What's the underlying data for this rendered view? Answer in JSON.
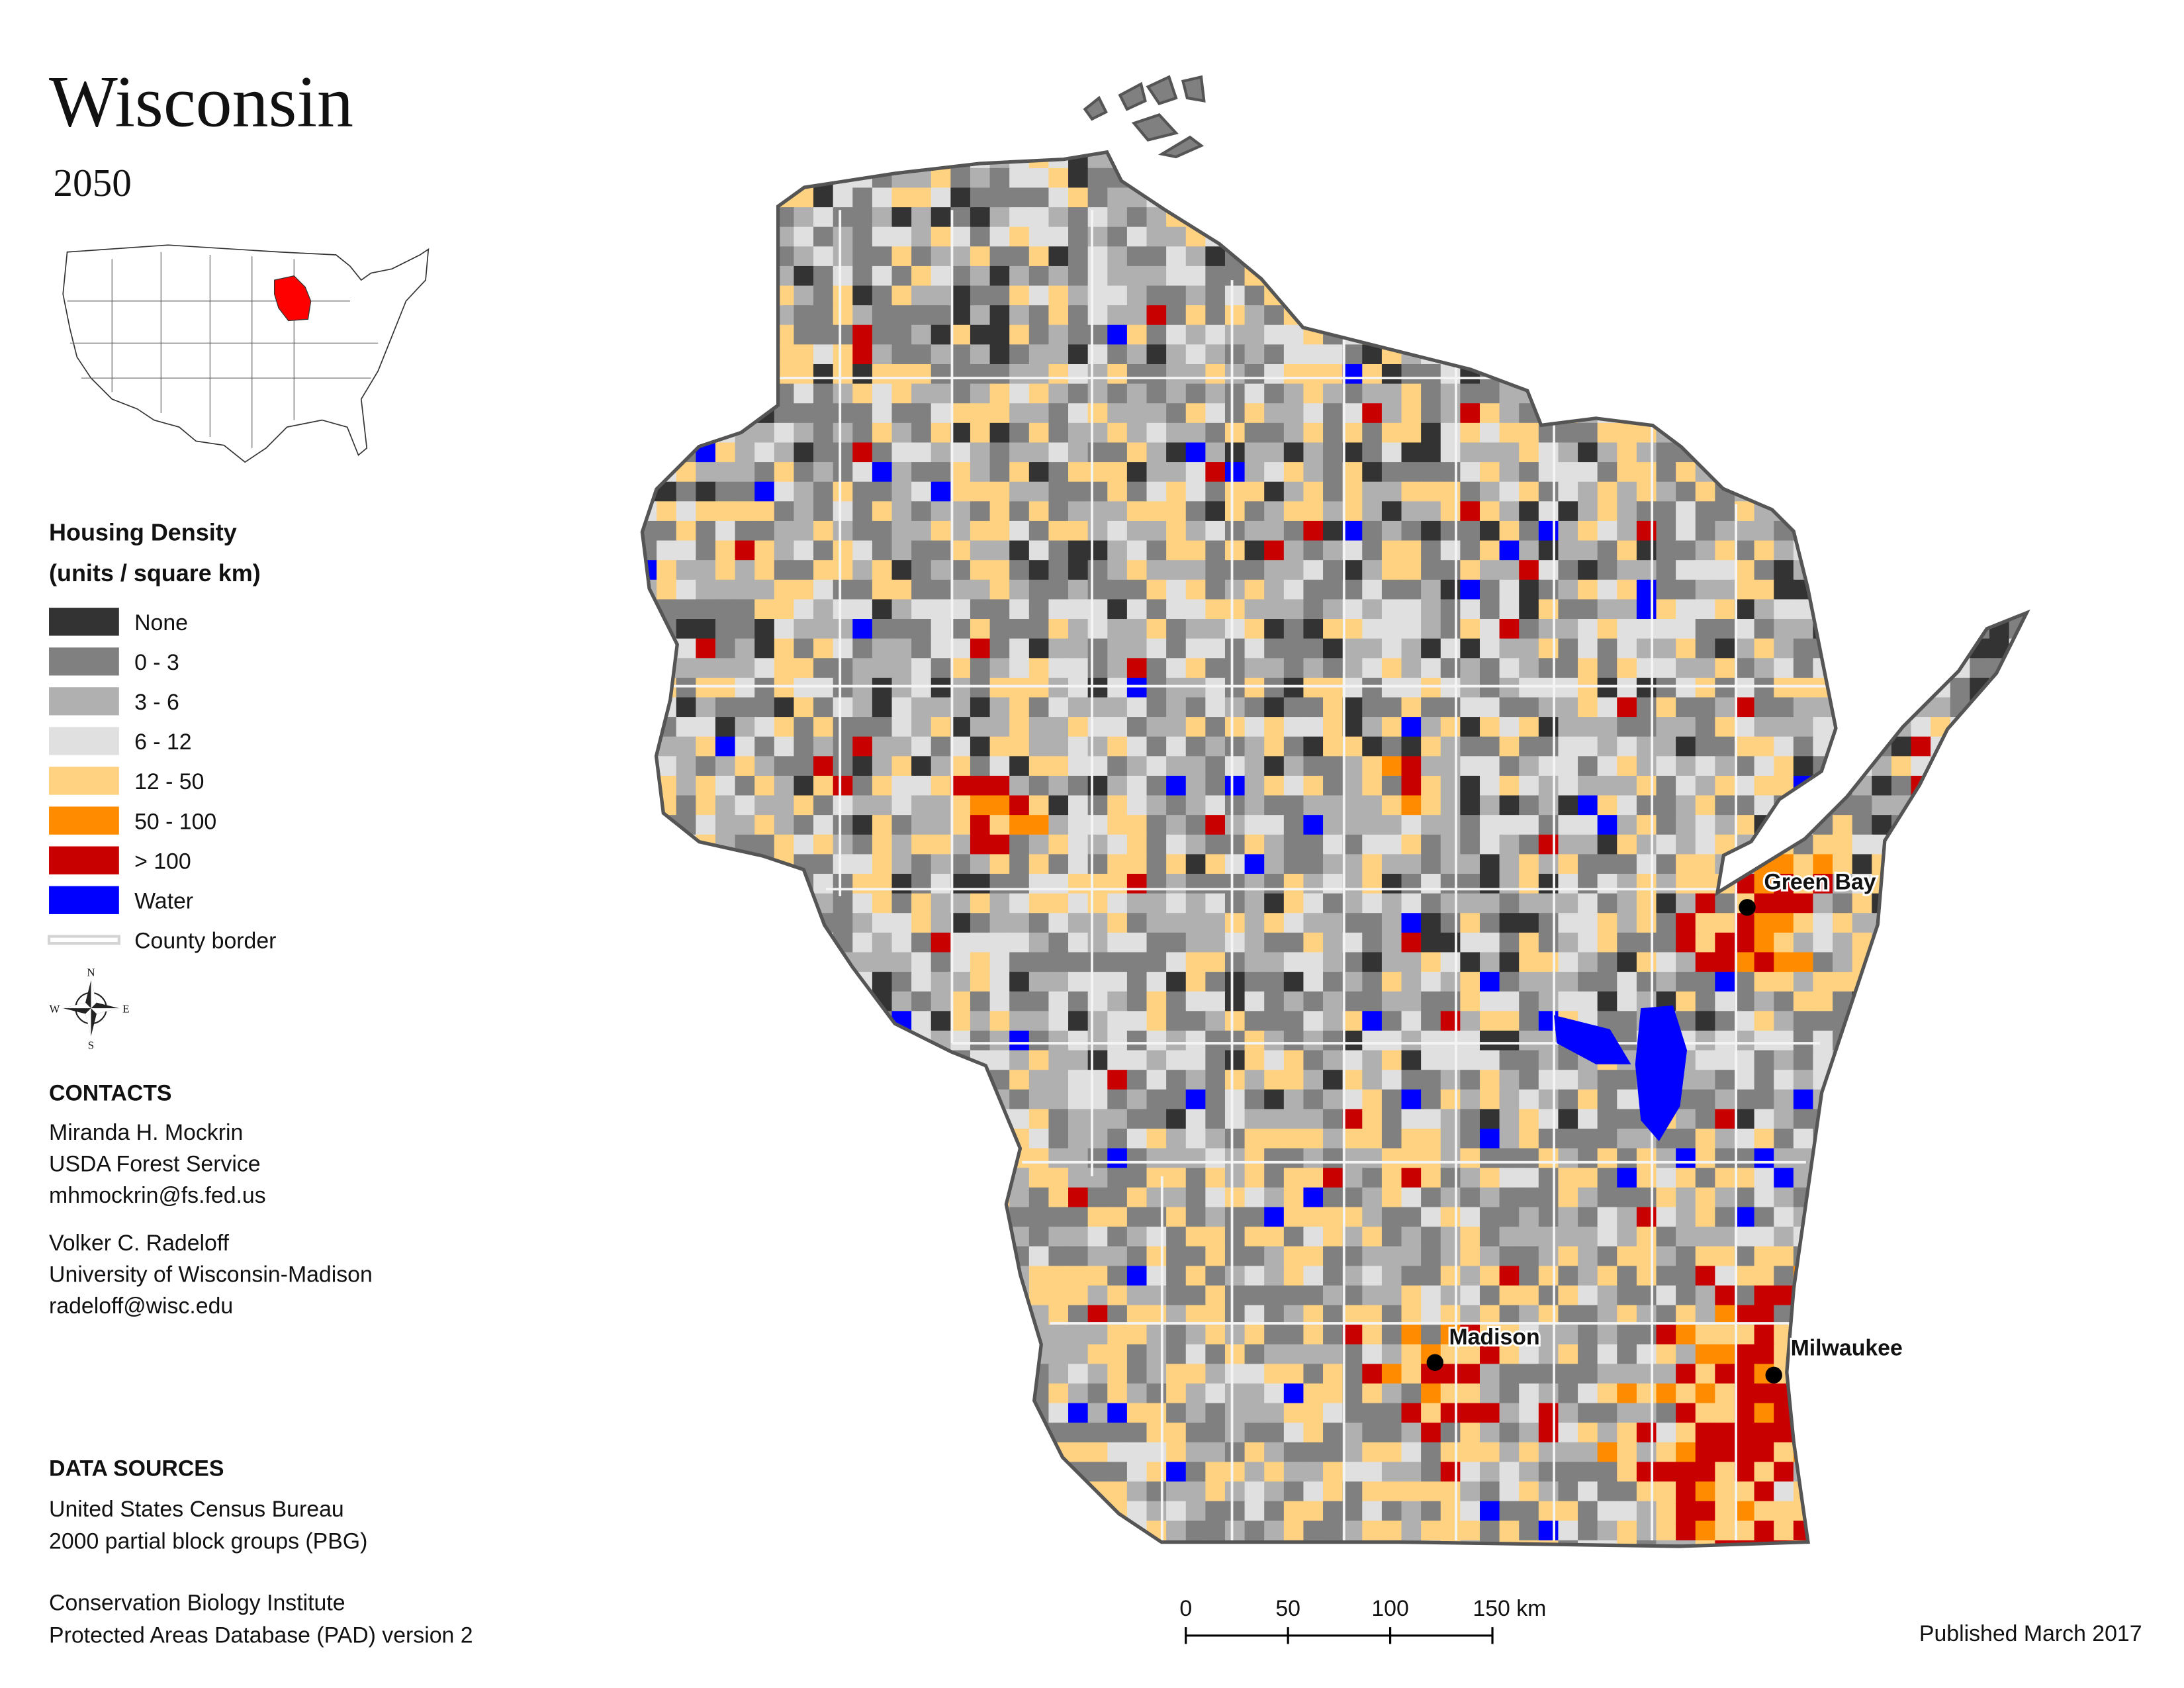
{
  "title": "Wisconsin",
  "subtitle": "2050",
  "legend": {
    "title": "Housing Density",
    "subtitle": "(units / square km)",
    "items": [
      {
        "label": "None",
        "color": "#333333"
      },
      {
        "label": "0 - 3",
        "color": "#808080"
      },
      {
        "label": "3 - 6",
        "color": "#b0b0b0"
      },
      {
        "label": "6 - 12",
        "color": "#e0e0e0"
      },
      {
        "label": "12 - 50",
        "color": "#ffd281"
      },
      {
        "label": "50 - 100",
        "color": "#ff8c00"
      },
      {
        "label": "> 100",
        "color": "#c80000"
      },
      {
        "label": "Water",
        "color": "#0000ff"
      },
      {
        "label": "County border",
        "color": "#d4d4d4"
      }
    ]
  },
  "compass": {
    "n": "N",
    "e": "E",
    "s": "S",
    "w": "W"
  },
  "cities": [
    {
      "label": "Green Bay"
    },
    {
      "label": "Madison"
    },
    {
      "label": "Milwaukee"
    }
  ],
  "contacts": {
    "heading": "CONTACTS",
    "people": [
      [
        "Miranda H. Mockrin",
        "USDA Forest Service",
        "mhmockrin@fs.fed.us"
      ],
      [
        "Volker C. Radeloff",
        "University of Wisconsin-Madison",
        "radeloff@wisc.edu"
      ]
    ]
  },
  "data_sources": {
    "heading": "DATA SOURCES",
    "sources": [
      [
        "United States Census Bureau",
        "2000 partial block groups (PBG)"
      ],
      [
        "Conservation Biology Institute",
        "Protected Areas Database (PAD) version 2"
      ]
    ]
  },
  "scale_bar": {
    "ticks": [
      0,
      50,
      100,
      {
        "value": 150,
        "label": "150 km"
      }
    ]
  },
  "published": "Published March 2017"
}
